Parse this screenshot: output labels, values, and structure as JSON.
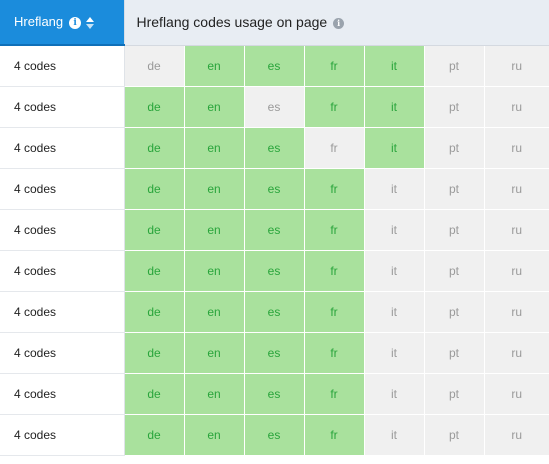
{
  "header": {
    "sort_column_label": "Hreflang",
    "usage_column_label": "Hreflang codes usage on page",
    "info_icon_glyph": "i"
  },
  "languages": [
    "de",
    "en",
    "es",
    "fr",
    "it",
    "pt",
    "ru"
  ],
  "rows": [
    {
      "count": "4 codes",
      "codes": [
        {
          "code": "de",
          "used": false
        },
        {
          "code": "en",
          "used": true
        },
        {
          "code": "es",
          "used": true
        },
        {
          "code": "fr",
          "used": true
        },
        {
          "code": "it",
          "used": true
        },
        {
          "code": "pt",
          "used": false
        },
        {
          "code": "ru",
          "used": false
        }
      ]
    },
    {
      "count": "4 codes",
      "codes": [
        {
          "code": "de",
          "used": true
        },
        {
          "code": "en",
          "used": true
        },
        {
          "code": "es",
          "used": false
        },
        {
          "code": "fr",
          "used": true
        },
        {
          "code": "it",
          "used": true
        },
        {
          "code": "pt",
          "used": false
        },
        {
          "code": "ru",
          "used": false
        }
      ]
    },
    {
      "count": "4 codes",
      "codes": [
        {
          "code": "de",
          "used": true
        },
        {
          "code": "en",
          "used": true
        },
        {
          "code": "es",
          "used": true
        },
        {
          "code": "fr",
          "used": false
        },
        {
          "code": "it",
          "used": true
        },
        {
          "code": "pt",
          "used": false
        },
        {
          "code": "ru",
          "used": false
        }
      ]
    },
    {
      "count": "4 codes",
      "codes": [
        {
          "code": "de",
          "used": true
        },
        {
          "code": "en",
          "used": true
        },
        {
          "code": "es",
          "used": true
        },
        {
          "code": "fr",
          "used": true
        },
        {
          "code": "it",
          "used": false
        },
        {
          "code": "pt",
          "used": false
        },
        {
          "code": "ru",
          "used": false
        }
      ]
    },
    {
      "count": "4 codes",
      "codes": [
        {
          "code": "de",
          "used": true
        },
        {
          "code": "en",
          "used": true
        },
        {
          "code": "es",
          "used": true
        },
        {
          "code": "fr",
          "used": true
        },
        {
          "code": "it",
          "used": false
        },
        {
          "code": "pt",
          "used": false
        },
        {
          "code": "ru",
          "used": false
        }
      ]
    },
    {
      "count": "4 codes",
      "codes": [
        {
          "code": "de",
          "used": true
        },
        {
          "code": "en",
          "used": true
        },
        {
          "code": "es",
          "used": true
        },
        {
          "code": "fr",
          "used": true
        },
        {
          "code": "it",
          "used": false
        },
        {
          "code": "pt",
          "used": false
        },
        {
          "code": "ru",
          "used": false
        }
      ]
    },
    {
      "count": "4 codes",
      "codes": [
        {
          "code": "de",
          "used": true
        },
        {
          "code": "en",
          "used": true
        },
        {
          "code": "es",
          "used": true
        },
        {
          "code": "fr",
          "used": true
        },
        {
          "code": "it",
          "used": false
        },
        {
          "code": "pt",
          "used": false
        },
        {
          "code": "ru",
          "used": false
        }
      ]
    },
    {
      "count": "4 codes",
      "codes": [
        {
          "code": "de",
          "used": true
        },
        {
          "code": "en",
          "used": true
        },
        {
          "code": "es",
          "used": true
        },
        {
          "code": "fr",
          "used": true
        },
        {
          "code": "it",
          "used": false
        },
        {
          "code": "pt",
          "used": false
        },
        {
          "code": "ru",
          "used": false
        }
      ]
    },
    {
      "count": "4 codes",
      "codes": [
        {
          "code": "de",
          "used": true
        },
        {
          "code": "en",
          "used": true
        },
        {
          "code": "es",
          "used": true
        },
        {
          "code": "fr",
          "used": true
        },
        {
          "code": "it",
          "used": false
        },
        {
          "code": "pt",
          "used": false
        },
        {
          "code": "ru",
          "used": false
        }
      ]
    },
    {
      "count": "4 codes",
      "codes": [
        {
          "code": "de",
          "used": true
        },
        {
          "code": "en",
          "used": true
        },
        {
          "code": "es",
          "used": true
        },
        {
          "code": "fr",
          "used": true
        },
        {
          "code": "it",
          "used": false
        },
        {
          "code": "pt",
          "used": false
        },
        {
          "code": "ru",
          "used": false
        }
      ]
    }
  ],
  "colors": {
    "header_accent": "#1b8cdc",
    "used_bg": "#a9e19d",
    "used_text": "#2aa53c",
    "unused_bg": "#f0f0f0",
    "unused_text": "#9a9a9a"
  }
}
